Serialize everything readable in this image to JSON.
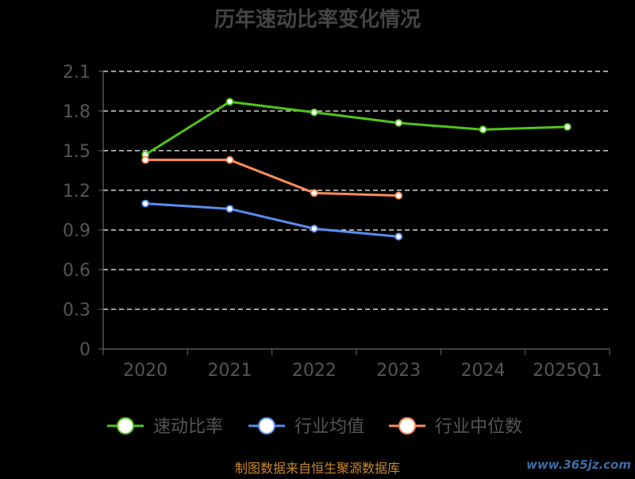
{
  "chart_data": {
    "type": "line",
    "title": "历年速动比率变化情况",
    "categories": [
      "2020",
      "2021",
      "2022",
      "2023",
      "2024",
      "2025Q1"
    ],
    "y_ticks": [
      "0",
      "0.3",
      "0.6",
      "0.9",
      "1.2",
      "1.5",
      "1.8",
      "2.1"
    ],
    "ylim": [
      0,
      2.1
    ],
    "grid": "horizontal-dashed",
    "legend_position": "bottom",
    "series": [
      {
        "name": "速动比率",
        "color": "#52c41a",
        "values": [
          1.47,
          1.87,
          1.79,
          1.71,
          1.66,
          1.68
        ]
      },
      {
        "name": "行业均值",
        "color": "#5b8def",
        "values": [
          1.1,
          1.06,
          0.91,
          0.85,
          null,
          null
        ]
      },
      {
        "name": "行业中位数",
        "color": "#ff8c5a",
        "values": [
          1.43,
          1.43,
          1.18,
          1.16,
          null,
          null
        ]
      }
    ]
  },
  "footer": {
    "source": "制图数据来自恒生聚源数据库",
    "watermark": "www.365jz.com"
  }
}
